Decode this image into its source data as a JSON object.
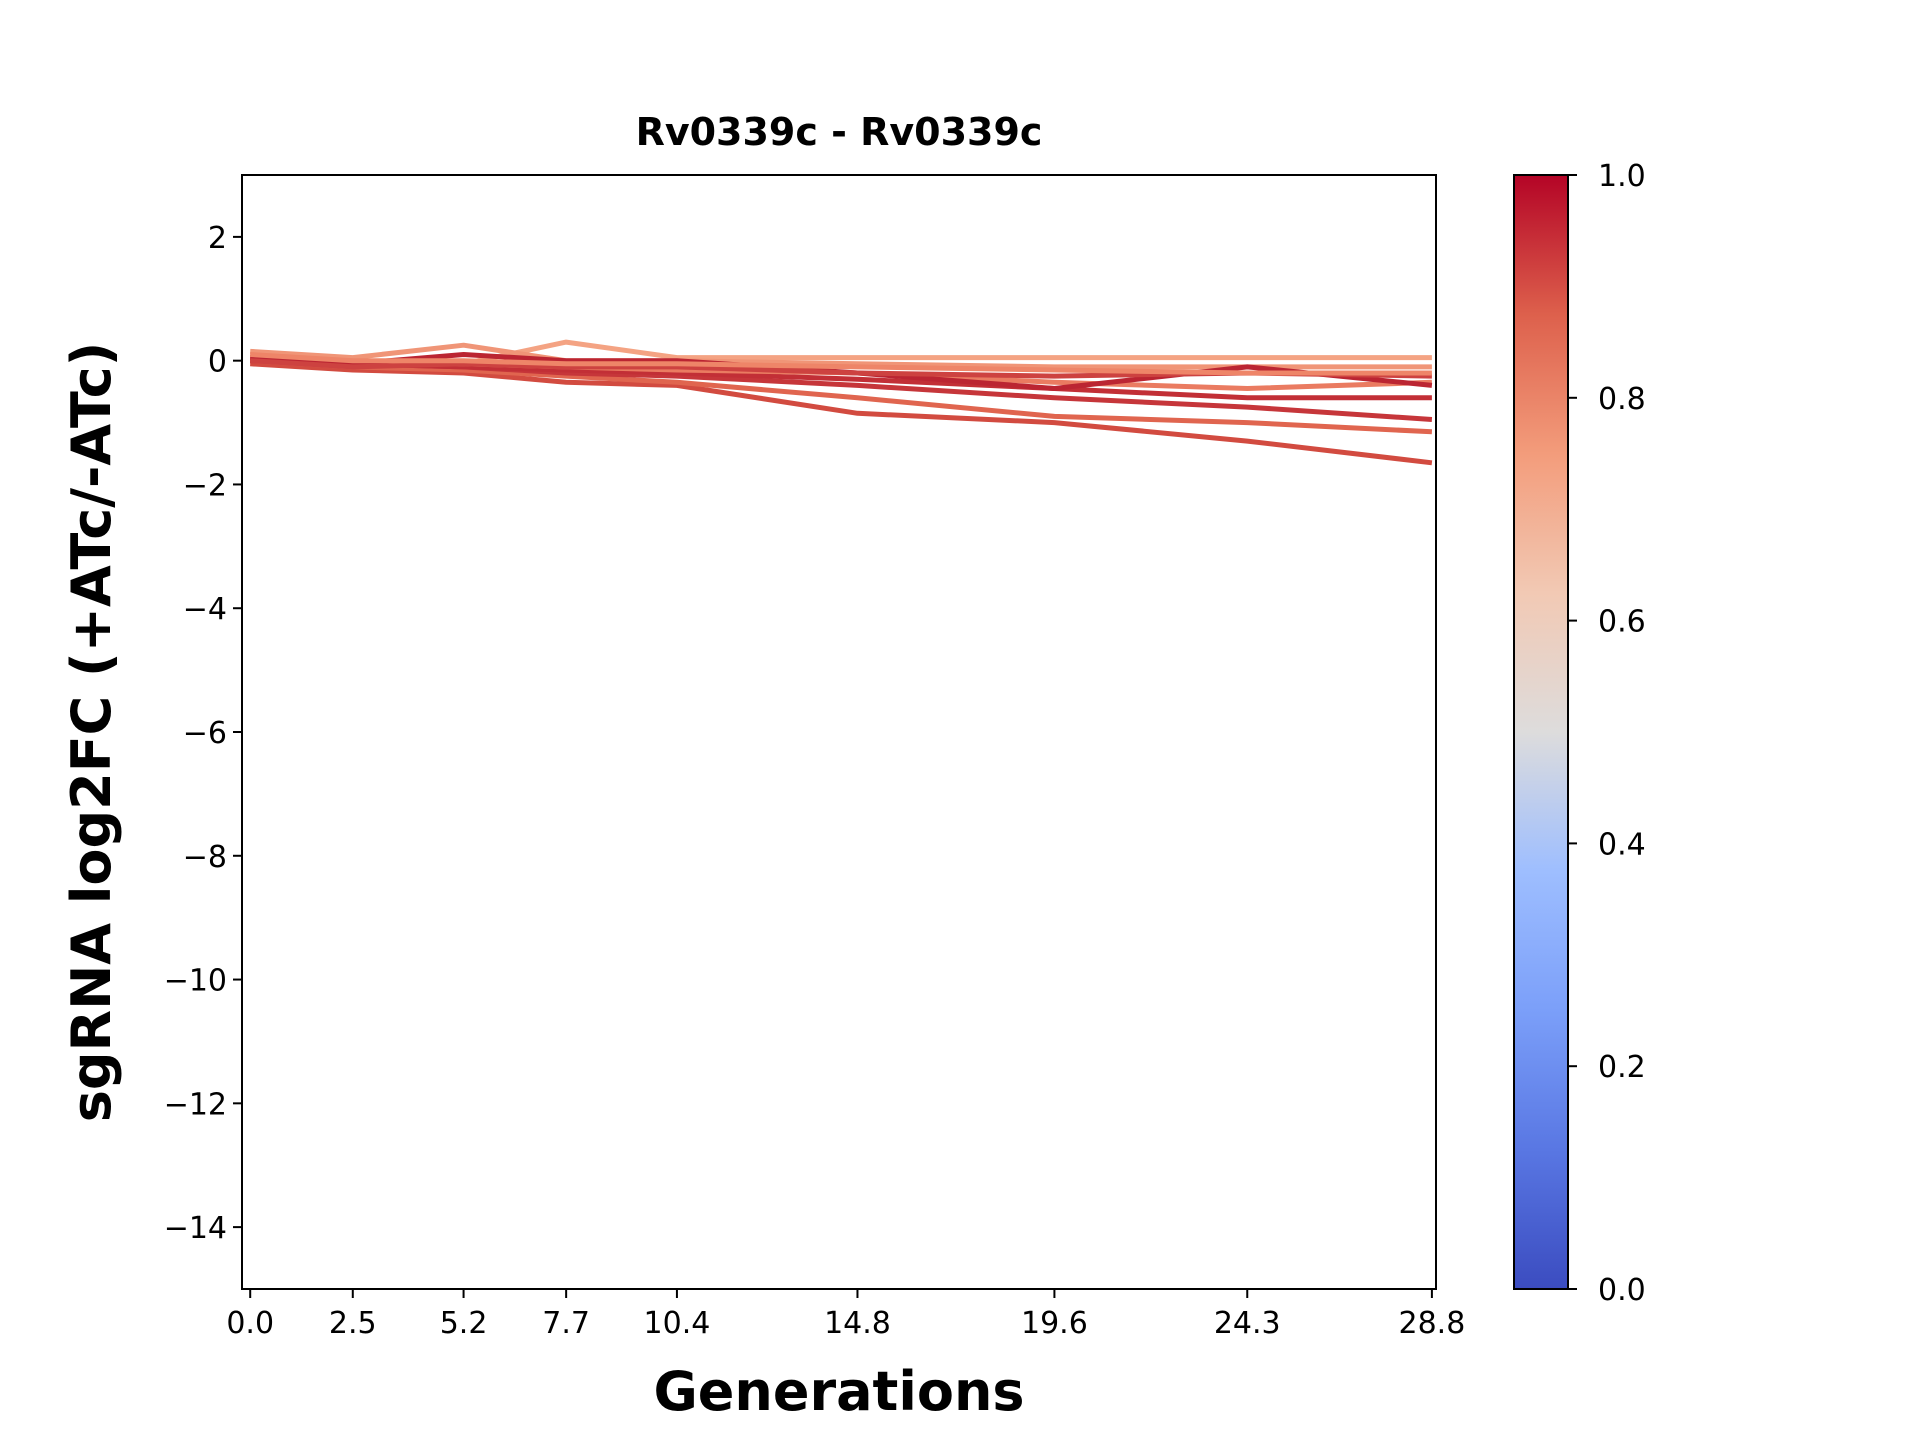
{
  "chart_data": {
    "type": "line",
    "title": "Rv0339c - Rv0339c",
    "xlabel": "Generations",
    "ylabel": "sgRNA log2FC (+ATc/-ATc)",
    "x": [
      0.0,
      2.5,
      5.2,
      7.7,
      10.4,
      14.8,
      19.6,
      24.3,
      28.8
    ],
    "xtick_labels": [
      "0.0",
      "2.5",
      "5.2",
      "7.7",
      "10.4",
      "14.8",
      "19.6",
      "24.3",
      "28.8"
    ],
    "ylim": [
      -15,
      3
    ],
    "xlim": [
      -0.2,
      28.9
    ],
    "yticks": [
      2,
      0,
      -2,
      -4,
      -6,
      -8,
      -10,
      -12,
      -14
    ],
    "ytick_labels": [
      "2",
      "0",
      "−2",
      "−4",
      "−6",
      "−8",
      "−10",
      "−12",
      "−14"
    ],
    "grid": false,
    "colormap": "coolwarm",
    "colorbar": {
      "range": [
        0,
        1
      ],
      "tick_labels": [
        "0.0",
        "0.2",
        "0.4",
        "0.6",
        "0.8",
        "1.0"
      ],
      "ticks": [
        0,
        0.2,
        0.4,
        0.6,
        0.8,
        1.0
      ]
    },
    "series": [
      {
        "color_value": 0.88,
        "color": "#d24b40",
        "values": [
          -0.05,
          -0.15,
          -0.2,
          -0.35,
          -0.4,
          -0.85,
          -1.0,
          -1.3,
          -1.65
        ]
      },
      {
        "color_value": 0.83,
        "color": "#e0654f",
        "values": [
          0.0,
          -0.1,
          -0.15,
          -0.25,
          -0.35,
          -0.6,
          -0.9,
          -1.0,
          -1.15
        ]
      },
      {
        "color_value": 0.93,
        "color": "#c6363a",
        "values": [
          0.05,
          -0.05,
          -0.1,
          -0.2,
          -0.25,
          -0.4,
          -0.6,
          -0.75,
          -0.95
        ]
      },
      {
        "color_value": 0.95,
        "color": "#c22f36",
        "values": [
          0.0,
          -0.05,
          -0.1,
          -0.15,
          -0.2,
          -0.3,
          -0.45,
          -0.6,
          -0.6
        ]
      },
      {
        "color_value": 0.72,
        "color": "#f4a383",
        "values": [
          0.1,
          0.0,
          -0.05,
          0.3,
          0.05,
          0.05,
          0.05,
          0.05,
          0.05
        ]
      },
      {
        "color_value": 0.76,
        "color": "#f09577",
        "values": [
          0.15,
          0.05,
          0.25,
          0.0,
          0.0,
          -0.05,
          -0.1,
          -0.1,
          -0.1
        ]
      },
      {
        "color_value": 0.8,
        "color": "#ea7b61",
        "values": [
          0.05,
          -0.05,
          -0.05,
          -0.1,
          -0.15,
          -0.2,
          -0.35,
          -0.45,
          -0.35
        ]
      },
      {
        "color_value": 0.97,
        "color": "#bb2532",
        "values": [
          0.05,
          -0.05,
          0.1,
          0.0,
          0.0,
          -0.2,
          -0.45,
          -0.1,
          -0.4
        ]
      },
      {
        "color_value": 0.9,
        "color": "#cd4240",
        "values": [
          0.0,
          -0.1,
          -0.05,
          -0.1,
          -0.1,
          -0.2,
          -0.25,
          -0.2,
          -0.25
        ]
      },
      {
        "color_value": 0.78,
        "color": "#ee8568",
        "values": [
          0.1,
          0.0,
          0.0,
          -0.05,
          -0.05,
          -0.1,
          -0.15,
          -0.2,
          -0.2
        ]
      }
    ]
  }
}
